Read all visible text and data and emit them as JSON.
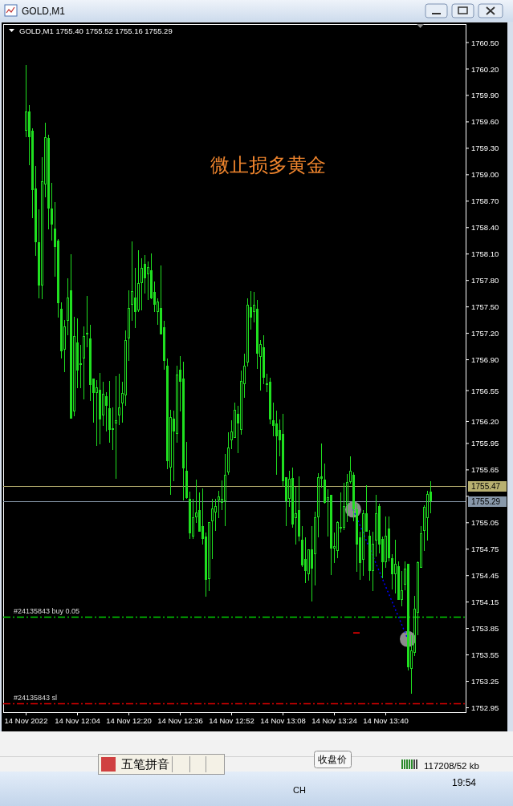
{
  "chart_data": {
    "type": "candlestick",
    "title": "GOLD,M1",
    "subtitle": "GOLD,M1 1755.40 1755.52 1755.16 1755.29",
    "annotations": [
      "微止损多黄金",
      "五笔拼音",
      "收盘价",
      "117208/52 kb",
      "CH",
      "19:54"
    ],
    "color": "#20e020",
    "x": [
      "2022-11-14T11:48",
      "2022-11-14T11:49",
      "2022-11-14T11:50",
      "2022-11-14T11:51",
      "2022-11-14T11:52",
      "2022-11-14T11:53",
      "2022-11-14T11:54",
      "2022-11-14T11:55",
      "2022-11-14T11:56",
      "2022-11-14T11:57",
      "2022-11-14T11:58",
      "2022-11-14T11:59",
      "2022-11-14T12:00",
      "2022-11-14T12:01",
      "2022-11-14T12:02",
      "2022-11-14T12:03",
      "2022-11-14T12:04",
      "2022-11-14T12:05",
      "2022-11-14T12:06",
      "2022-11-14T12:07",
      "2022-11-14T12:08",
      "2022-11-14T12:09",
      "2022-11-14T12:10",
      "2022-11-14T12:11",
      "2022-11-14T12:12",
      "2022-11-14T12:13",
      "2022-11-14T12:14",
      "2022-11-14T12:15",
      "2022-11-14T12:16",
      "2022-11-14T12:17",
      "2022-11-14T12:18",
      "2022-11-14T12:19",
      "2022-11-14T12:20",
      "2022-11-14T12:21",
      "2022-11-14T12:22",
      "2022-11-14T12:23",
      "2022-11-14T12:24",
      "2022-11-14T12:25",
      "2022-11-14T12:26",
      "2022-11-14T12:27",
      "2022-11-14T12:28",
      "2022-11-14T12:29",
      "2022-11-14T12:30",
      "2022-11-14T12:31",
      "2022-11-14T12:32",
      "2022-11-14T12:33",
      "2022-11-14T12:34",
      "2022-11-14T12:35",
      "2022-11-14T12:36",
      "2022-11-14T12:37",
      "2022-11-14T12:38",
      "2022-11-14T12:39",
      "2022-11-14T12:40",
      "2022-11-14T12:41",
      "2022-11-14T12:42",
      "2022-11-14T12:43",
      "2022-11-14T12:44",
      "2022-11-14T12:45",
      "2022-11-14T12:46",
      "2022-11-14T12:47",
      "2022-11-14T12:48",
      "2022-11-14T12:49",
      "2022-11-14T12:50",
      "2022-11-14T12:51",
      "2022-11-14T12:52",
      "2022-11-14T12:53",
      "2022-11-14T12:54",
      "2022-11-14T12:55",
      "2022-11-14T12:56",
      "2022-11-14T12:57",
      "2022-11-14T12:58",
      "2022-11-14T12:59",
      "2022-11-14T13:00",
      "2022-11-14T13:01",
      "2022-11-14T13:02",
      "2022-11-14T13:03",
      "2022-11-14T13:04",
      "2022-11-14T13:05",
      "2022-11-14T13:06",
      "2022-11-14T13:07",
      "2022-11-14T13:08",
      "2022-11-14T13:09",
      "2022-11-14T13:10",
      "2022-11-14T13:11",
      "2022-11-14T13:12",
      "2022-11-14T13:13",
      "2022-11-14T13:14",
      "2022-11-14T13:15",
      "2022-11-14T13:16",
      "2022-11-14T13:17",
      "2022-11-14T13:18",
      "2022-11-14T13:19",
      "2022-11-14T13:20",
      "2022-11-14T13:21",
      "2022-11-14T13:22",
      "2022-11-14T13:23",
      "2022-11-14T13:24",
      "2022-11-14T13:25",
      "2022-11-14T13:26",
      "2022-11-14T13:27",
      "2022-11-14T13:28",
      "2022-11-14T13:29",
      "2022-11-14T13:30",
      "2022-11-14T13:31",
      "2022-11-14T13:32",
      "2022-11-14T13:33",
      "2022-11-14T13:34",
      "2022-11-14T13:35",
      "2022-11-14T13:36",
      "2022-11-14T13:37",
      "2022-11-14T13:38",
      "2022-11-14T13:39",
      "2022-11-14T13:40",
      "2022-11-14T13:41",
      "2022-11-14T13:42",
      "2022-11-14T13:43",
      "2022-11-14T13:44",
      "2022-11-14T13:45",
      "2022-11-14T13:46",
      "2022-11-14T13:47",
      "2022-11-14T13:48",
      "2022-11-14T13:49",
      "2022-11-14T13:50",
      "2022-11-14T13:51",
      "2022-11-14T13:52",
      "2022-11-14T13:53",
      "2022-11-14T13:54"
    ],
    "ohlc": [
      [
        1759.5,
        1760.25,
        1759.43,
        1759.72
      ],
      [
        1759.72,
        1759.79,
        1759.11,
        1759.43
      ],
      [
        1759.5,
        1759.53,
        1758.51,
        1758.83
      ],
      [
        1758.84,
        1759.1,
        1758.08,
        1758.23
      ],
      [
        1758.23,
        1758.61,
        1757.6,
        1757.74
      ],
      [
        1757.74,
        1759.2,
        1757.59,
        1758.93
      ],
      [
        1758.89,
        1759.59,
        1758.74,
        1759.43
      ],
      [
        1759.42,
        1759.45,
        1758.38,
        1758.62
      ],
      [
        1758.62,
        1758.91,
        1758.25,
        1758.43
      ],
      [
        1758.39,
        1758.69,
        1757.84,
        1758.18
      ],
      [
        1758.25,
        1758.27,
        1757.38,
        1757.54
      ],
      [
        1757.48,
        1757.55,
        1756.91,
        1757.0
      ],
      [
        1757.01,
        1757.35,
        1756.76,
        1757.28
      ],
      [
        1757.34,
        1757.82,
        1757.18,
        1757.61
      ],
      [
        1757.69,
        1758.1,
        1756.23,
        1756.23
      ],
      [
        1756.31,
        1757.39,
        1756.26,
        1757.17
      ],
      [
        1757.1,
        1757.37,
        1756.58,
        1756.78
      ],
      [
        1756.84,
        1757.07,
        1756.58,
        1756.86
      ],
      [
        1756.91,
        1757.28,
        1756.45,
        1757.17
      ],
      [
        1757.19,
        1757.62,
        1757.04,
        1757.21
      ],
      [
        1757.14,
        1757.3,
        1756.43,
        1756.61
      ],
      [
        1756.69,
        1756.69,
        1756.19,
        1756.52
      ],
      [
        1756.52,
        1756.67,
        1755.92,
        1756.59
      ],
      [
        1756.56,
        1756.75,
        1755.94,
        1756.22
      ],
      [
        1756.27,
        1756.65,
        1756.15,
        1756.51
      ],
      [
        1756.49,
        1756.53,
        1756.09,
        1756.38
      ],
      [
        1756.35,
        1756.66,
        1755.96,
        1756.1
      ],
      [
        1756.1,
        1756.36,
        1755.88,
        1756.12
      ],
      [
        1756.18,
        1756.71,
        1755.55,
        1756.21
      ],
      [
        1756.27,
        1756.74,
        1756.16,
        1756.36
      ],
      [
        1756.4,
        1756.65,
        1756.19,
        1756.52
      ],
      [
        1756.5,
        1757.23,
        1756.38,
        1757.12
      ],
      [
        1757.14,
        1757.69,
        1756.89,
        1757.49
      ],
      [
        1757.52,
        1758.24,
        1757.34,
        1757.68
      ],
      [
        1757.61,
        1757.94,
        1757.26,
        1757.44
      ],
      [
        1757.46,
        1758.14,
        1757.44,
        1757.77
      ],
      [
        1757.77,
        1758.05,
        1757.46,
        1757.94
      ],
      [
        1757.99,
        1758.09,
        1757.65,
        1757.82
      ],
      [
        1757.87,
        1758.02,
        1757.58,
        1757.95
      ],
      [
        1757.92,
        1758.11,
        1757.59,
        1757.6
      ],
      [
        1757.67,
        1757.79,
        1757.44,
        1757.52
      ],
      [
        1757.44,
        1757.6,
        1757.3,
        1757.56
      ],
      [
        1757.49,
        1757.97,
        1757.19,
        1757.19
      ],
      [
        1757.27,
        1757.34,
        1756.79,
        1756.89
      ],
      [
        1756.83,
        1756.91,
        1755.66,
        1755.75
      ],
      [
        1755.68,
        1756.33,
        1755.37,
        1756.25
      ],
      [
        1756.23,
        1756.32,
        1755.52,
        1756.09
      ],
      [
        1756.06,
        1756.83,
        1755.96,
        1756.73
      ],
      [
        1756.79,
        1756.94,
        1756.31,
        1756.65
      ],
      [
        1756.69,
        1756.88,
        1755.3,
        1755.67
      ],
      [
        1755.64,
        1755.97,
        1755.32,
        1755.33
      ],
      [
        1755.32,
        1755.4,
        1754.87,
        1754.93
      ],
      [
        1754.89,
        1755.32,
        1754.87,
        1755.11
      ],
      [
        1755.11,
        1755.54,
        1755.05,
        1755.17
      ],
      [
        1755.19,
        1755.39,
        1754.95,
        1754.95
      ],
      [
        1755.01,
        1755.44,
        1754.8,
        1754.87
      ],
      [
        1754.89,
        1754.94,
        1754.21,
        1754.4
      ],
      [
        1754.41,
        1755.06,
        1754.27,
        1755.06
      ],
      [
        1755.07,
        1755.32,
        1754.64,
        1755.21
      ],
      [
        1755.17,
        1755.32,
        1754.96,
        1755.24
      ],
      [
        1755.3,
        1755.41,
        1755.1,
        1755.35
      ],
      [
        1755.28,
        1755.53,
        1755.19,
        1755.32
      ],
      [
        1755.29,
        1755.83,
        1755.01,
        1755.59
      ],
      [
        1755.62,
        1756.08,
        1755.59,
        1755.9
      ],
      [
        1755.99,
        1756.21,
        1755.89,
        1756.09
      ],
      [
        1756.01,
        1756.41,
        1756.01,
        1756.33
      ],
      [
        1756.29,
        1756.38,
        1755.84,
        1756.18
      ],
      [
        1756.1,
        1756.78,
        1756.05,
        1756.66
      ],
      [
        1756.62,
        1756.97,
        1756.47,
        1756.83
      ],
      [
        1756.87,
        1757.6,
        1756.82,
        1757.52
      ],
      [
        1757.5,
        1757.68,
        1757.24,
        1757.38
      ],
      [
        1757.44,
        1757.67,
        1757.32,
        1757.52
      ],
      [
        1757.48,
        1757.58,
        1756.8,
        1756.97
      ],
      [
        1756.93,
        1757.12,
        1756.55,
        1757.08
      ],
      [
        1757.04,
        1757.18,
        1756.62,
        1756.7
      ],
      [
        1756.63,
        1756.74,
        1756.53,
        1756.61
      ],
      [
        1756.65,
        1756.7,
        1756.17,
        1756.22
      ],
      [
        1756.21,
        1756.41,
        1756.03,
        1756.15
      ],
      [
        1756.18,
        1756.32,
        1755.59,
        1756.03
      ],
      [
        1756.1,
        1756.22,
        1755.8,
        1755.99
      ],
      [
        1756.06,
        1756.29,
        1755.46,
        1755.52
      ],
      [
        1755.57,
        1755.57,
        1755.01,
        1755.29
      ],
      [
        1755.32,
        1755.64,
        1755.23,
        1755.55
      ],
      [
        1755.56,
        1755.68,
        1754.99,
        1755.03
      ],
      [
        1755.1,
        1755.46,
        1754.8,
        1755.16
      ],
      [
        1755.19,
        1755.58,
        1754.84,
        1754.89
      ],
      [
        1754.86,
        1755.01,
        1754.55,
        1754.57
      ],
      [
        1754.64,
        1754.88,
        1754.37,
        1754.5
      ],
      [
        1754.47,
        1754.75,
        1754.39,
        1754.75
      ],
      [
        1754.75,
        1755.01,
        1754.16,
        1754.53
      ],
      [
        1754.69,
        1755.18,
        1754.34,
        1755.11
      ],
      [
        1755.11,
        1755.61,
        1754.88,
        1755.57
      ],
      [
        1755.58,
        1755.95,
        1755.45,
        1755.55
      ],
      [
        1755.54,
        1755.72,
        1755.27,
        1755.28
      ],
      [
        1755.3,
        1755.43,
        1754.89,
        1755.34
      ],
      [
        1755.37,
        1755.37,
        1754.46,
        1754.76
      ],
      [
        1754.76,
        1754.94,
        1754.59,
        1754.78
      ],
      [
        1754.73,
        1755.07,
        1754.65,
        1755.06
      ],
      [
        1754.99,
        1755.39,
        1754.94,
        1755.0
      ],
      [
        1754.99,
        1755.5,
        1754.97,
        1755.24
      ],
      [
        1755.25,
        1755.6,
        1755.06,
        1755.51
      ],
      [
        1755.51,
        1755.8,
        1755.49,
        1755.64
      ],
      [
        1755.59,
        1755.62,
        1755.07,
        1755.2
      ],
      [
        1755.2,
        1755.27,
        1754.49,
        1754.8
      ],
      [
        1754.88,
        1754.95,
        1754.4,
        1754.59
      ],
      [
        1754.63,
        1755.19,
        1754.45,
        1755.16
      ],
      [
        1755.16,
        1755.48,
        1754.95,
        1754.95
      ],
      [
        1754.9,
        1754.97,
        1754.39,
        1754.5
      ],
      [
        1754.5,
        1754.95,
        1754.27,
        1754.81
      ],
      [
        1754.85,
        1755.37,
        1754.67,
        1755.16
      ],
      [
        1755.24,
        1755.27,
        1754.7,
        1754.8
      ],
      [
        1754.87,
        1754.89,
        1754.42,
        1754.6
      ],
      [
        1754.6,
        1755.12,
        1754.54,
        1754.9
      ],
      [
        1754.98,
        1755.12,
        1754.61,
        1754.65
      ],
      [
        1754.65,
        1754.69,
        1754.29,
        1754.47
      ],
      [
        1754.47,
        1754.86,
        1754.25,
        1754.58
      ],
      [
        1754.56,
        1754.61,
        1754.17,
        1754.17
      ],
      [
        1754.17,
        1754.5,
        1754.1,
        1754.28
      ],
      [
        1754.35,
        1754.61,
        1754.28,
        1754.53
      ],
      [
        1754.58,
        1754.58,
        1753.37,
        1753.41
      ],
      [
        1753.39,
        1753.77,
        1753.11,
        1753.6
      ],
      [
        1753.57,
        1754.22,
        1753.54,
        1754.07
      ],
      [
        1754.03,
        1754.61,
        1753.77,
        1754.6
      ],
      [
        1754.54,
        1755.01,
        1754.54,
        1754.93
      ],
      [
        1754.96,
        1755.25,
        1754.73,
        1755.23
      ],
      [
        1755.1,
        1755.41,
        1754.85,
        1755.38
      ],
      [
        1755.4,
        1755.52,
        1755.16,
        1755.29
      ]
    ],
    "series": [
      {
        "type": "line",
        "color": "#0000ff",
        "line_style": "dotted",
        "x": [
          "2022-11-14T13:30",
          "2022-11-14T13:47"
        ],
        "values": [
          1755.2,
          1753.73
        ]
      },
      {
        "type": "line",
        "color": "#ff0000",
        "x": [
          "2022-11-14T13:30",
          "2022-11-14T13:32"
        ],
        "values": [
          1753.8,
          1753.8
        ]
      },
      {
        "type": "scatter",
        "color": "#8c8c8c",
        "marker": "circle",
        "x": [
          "2022-11-14T13:30",
          "2022-11-14T13:47"
        ],
        "values": [
          1755.2,
          1753.73
        ]
      }
    ],
    "xlim": [
      "2022-11-14T11:41",
      "2022-11-14T14:05"
    ],
    "xticks": [
      {
        "value": "2022-11-14T11:48",
        "label": "14 Nov 2022"
      },
      {
        "value": "2022-11-14T12:04",
        "label": "14 Nov 12:04"
      },
      {
        "value": "2022-11-14T12:20",
        "label": "14 Nov 12:20"
      },
      {
        "value": "2022-11-14T12:36",
        "label": "14 Nov 12:36"
      },
      {
        "value": "2022-11-14T12:52",
        "label": "14 Nov 12:52"
      },
      {
        "value": "2022-11-14T13:08",
        "label": "14 Nov 13:08"
      },
      {
        "value": "2022-11-14T13:24",
        "label": "14 Nov 13:24"
      },
      {
        "value": "2022-11-14T13:40",
        "label": "14 Nov 13:40"
      }
    ],
    "ylim": [
      1752.9,
      1760.71
    ],
    "yticks": [
      {
        "value": 1760.5,
        "label": "1760.50"
      },
      {
        "value": 1760.2,
        "label": "1760.20"
      },
      {
        "value": 1759.9,
        "label": "1759.90"
      },
      {
        "value": 1759.6,
        "label": "1759.60"
      },
      {
        "value": 1759.3,
        "label": "1759.30"
      },
      {
        "value": 1759,
        "label": "1759.00"
      },
      {
        "value": 1758.7,
        "label": "1758.70"
      },
      {
        "value": 1758.4,
        "label": "1758.40"
      },
      {
        "value": 1758.1,
        "label": "1758.10"
      },
      {
        "value": 1757.8,
        "label": "1757.80"
      },
      {
        "value": 1757.5,
        "label": "1757.50"
      },
      {
        "value": 1757.2,
        "label": "1757.20"
      },
      {
        "value": 1756.9,
        "label": "1756.90"
      },
      1756.55,
      {
        "value": 1756.2,
        "label": "1756.20"
      },
      1755.95,
      1755.65,
      {
        "value": 1755.35,
        "label": null
      },
      1755.05,
      1754.75,
      1754.45,
      1754.15,
      1753.85,
      1753.55,
      1753.25,
      1752.95
    ],
    "ref_lines": [
      {
        "axis": "y",
        "value": 1755.47,
        "label": "1755.47",
        "color": "#b8b070"
      },
      {
        "axis": "y",
        "value": 1755.29,
        "label": "1755.29",
        "color": "#8898aa"
      },
      {
        "axis": "y",
        "value": 1753.98,
        "label": "#24135843 buy 0.05",
        "color": "#00d000",
        "line_style": "dashdot"
      },
      {
        "axis": "y",
        "value": 1753.0,
        "label": "#24135843 sl",
        "color": "#e00000",
        "line_style": "dashdot"
      }
    ]
  }
}
